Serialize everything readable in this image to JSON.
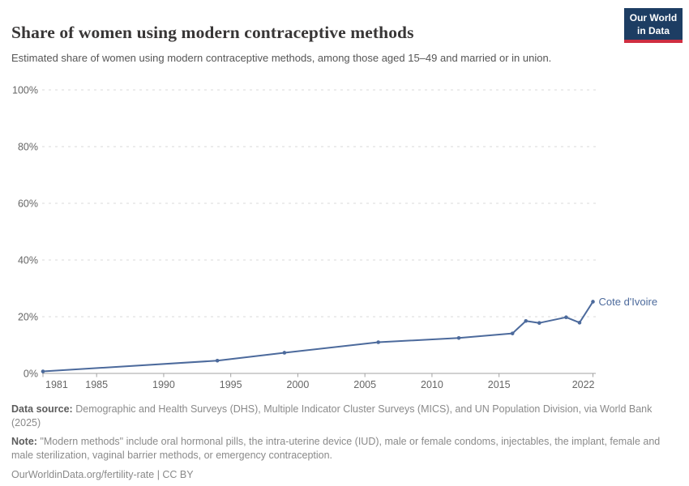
{
  "header": {
    "title": "Share of women using modern contraceptive methods",
    "subtitle": "Estimated share of women using modern contraceptive methods, among those aged 15–49 and married or in union.",
    "logo": {
      "line1": "Our World",
      "line2": "in Data",
      "background_color": "#1d3d63",
      "accent_color": "#cf2e41"
    }
  },
  "chart_data": {
    "type": "line",
    "title": "Share of women using modern contraceptive methods",
    "xlabel": "",
    "ylabel": "",
    "xlim": [
      1981,
      2022
    ],
    "ylim": [
      0,
      100
    ],
    "x_ticks": [
      1981,
      1985,
      1990,
      1995,
      2000,
      2005,
      2010,
      2015,
      2022
    ],
    "y_ticks": [
      0,
      20,
      40,
      60,
      80,
      100
    ],
    "y_tick_suffix": "%",
    "grid": "horizontal-dashed",
    "legend_position": "end-of-line-label",
    "series": [
      {
        "name": "Cote d'Ivoire",
        "color": "#4C6A9C",
        "points": [
          [
            1981,
            0.7
          ],
          [
            1994,
            4.5
          ],
          [
            1999,
            7.3
          ],
          [
            2006,
            11.0
          ],
          [
            2012,
            12.5
          ],
          [
            2016,
            14.1
          ],
          [
            2017,
            18.5
          ],
          [
            2018,
            17.8
          ],
          [
            2020,
            19.8
          ],
          [
            2021,
            17.9
          ],
          [
            2022,
            25.3
          ]
        ]
      }
    ],
    "axis_color": "#a3a3a3",
    "gridline_color": "#dadada",
    "tick_label_color": "#666666"
  },
  "footer": {
    "data_source_label": "Data source:",
    "data_source_text": "Demographic and Health Surveys (DHS), Multiple Indicator Cluster Surveys (MICS), and UN Population Division, via World Bank (2025)",
    "note_label": "Note:",
    "note_text": "\"Modern methods\" include oral hormonal pills, the intra-uterine device (IUD), male or female condoms, injectables, the implant, female and male sterilization, vaginal barrier methods, or emergency contraception.",
    "license_text": "OurWorldinData.org/fertility-rate | CC BY"
  }
}
